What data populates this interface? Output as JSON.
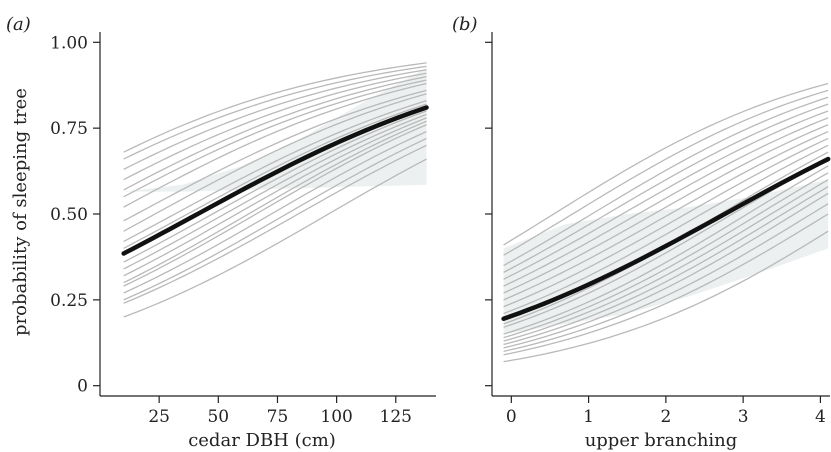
{
  "chart_data": [
    {
      "type": "line",
      "panel_label": "(a)",
      "xlabel": "cedar DBH (cm)",
      "ylabel": "probability of sleeping tree",
      "xlim": [
        0,
        142
      ],
      "ylim": [
        -0.03,
        1.03
      ],
      "x_ticks": [
        25,
        50,
        75,
        100,
        125
      ],
      "x_tick_labels": [
        "25",
        "50",
        "75",
        "100",
        "125"
      ],
      "y_ticks": [
        0,
        0.25,
        0.5,
        0.75,
        1.0
      ],
      "y_tick_labels": [
        "0",
        "0.25",
        "0.50",
        "0.75",
        "1.00"
      ],
      "grid": false,
      "x_range": [
        10,
        138
      ],
      "mean_curve": {
        "start": 0.385,
        "end": 0.81
      },
      "ci_band": {
        "upper": [
          0.565,
          0.585,
          0.64,
          0.72,
          0.82,
          0.925
        ],
        "lower": [
          0.565,
          0.565,
          0.57,
          0.575,
          0.58,
          0.585
        ],
        "x": [
          10,
          35,
          60,
          85,
          110,
          138
        ]
      },
      "simulated_curves": [
        {
          "start": 0.2,
          "end": 0.66
        },
        {
          "start": 0.24,
          "end": 0.7
        },
        {
          "start": 0.25,
          "end": 0.72
        },
        {
          "start": 0.27,
          "end": 0.74
        },
        {
          "start": 0.29,
          "end": 0.76
        },
        {
          "start": 0.3,
          "end": 0.77
        },
        {
          "start": 0.32,
          "end": 0.78
        },
        {
          "start": 0.34,
          "end": 0.79
        },
        {
          "start": 0.36,
          "end": 0.8
        },
        {
          "start": 0.4,
          "end": 0.82
        },
        {
          "start": 0.42,
          "end": 0.83
        },
        {
          "start": 0.45,
          "end": 0.85
        },
        {
          "start": 0.48,
          "end": 0.86
        },
        {
          "start": 0.52,
          "end": 0.88
        },
        {
          "start": 0.55,
          "end": 0.89
        },
        {
          "start": 0.57,
          "end": 0.9
        },
        {
          "start": 0.6,
          "end": 0.91
        },
        {
          "start": 0.63,
          "end": 0.92
        },
        {
          "start": 0.66,
          "end": 0.93
        },
        {
          "start": 0.68,
          "end": 0.94
        }
      ]
    },
    {
      "type": "line",
      "panel_label": "(b)",
      "xlabel": "upper branching",
      "ylabel": "",
      "xlim": [
        -0.25,
        4.15
      ],
      "ylim": [
        -0.03,
        1.03
      ],
      "x_ticks": [
        0,
        1,
        2,
        3,
        4
      ],
      "x_tick_labels": [
        "0",
        "1",
        "2",
        "3",
        "4"
      ],
      "y_ticks": [
        0,
        0.25,
        0.5,
        0.75,
        1.0
      ],
      "y_tick_labels": [],
      "grid": false,
      "x_range": [
        -0.1,
        4.1
      ],
      "mean_curve": {
        "start": 0.195,
        "end": 0.66
      },
      "ci_band": {
        "upper": [
          0.4,
          0.47,
          0.5,
          0.52,
          0.55,
          0.6
        ],
        "lower": [
          0.15,
          0.18,
          0.21,
          0.26,
          0.32,
          0.4
        ],
        "x": [
          -0.1,
          0.7,
          1.5,
          2.3,
          3.1,
          4.1
        ]
      },
      "simulated_curves": [
        {
          "start": 0.07,
          "end": 0.45
        },
        {
          "start": 0.09,
          "end": 0.5
        },
        {
          "start": 0.1,
          "end": 0.53
        },
        {
          "start": 0.11,
          "end": 0.56
        },
        {
          "start": 0.12,
          "end": 0.58
        },
        {
          "start": 0.13,
          "end": 0.6
        },
        {
          "start": 0.14,
          "end": 0.62
        },
        {
          "start": 0.15,
          "end": 0.64
        },
        {
          "start": 0.17,
          "end": 0.66
        },
        {
          "start": 0.18,
          "end": 0.68
        },
        {
          "start": 0.21,
          "end": 0.7
        },
        {
          "start": 0.23,
          "end": 0.72
        },
        {
          "start": 0.25,
          "end": 0.74
        },
        {
          "start": 0.27,
          "end": 0.76
        },
        {
          "start": 0.29,
          "end": 0.78
        },
        {
          "start": 0.31,
          "end": 0.8
        },
        {
          "start": 0.33,
          "end": 0.82
        },
        {
          "start": 0.35,
          "end": 0.84
        },
        {
          "start": 0.38,
          "end": 0.86
        },
        {
          "start": 0.41,
          "end": 0.88
        }
      ]
    }
  ],
  "colors": {
    "mean_line": "#111111",
    "simulated_lines": "#b9b9b9",
    "ci_band": "#dde3e3",
    "axis": "#222222"
  }
}
